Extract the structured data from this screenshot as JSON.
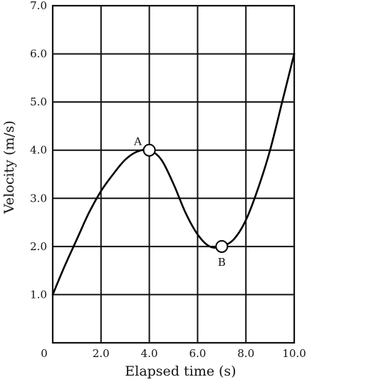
{
  "chart_data": {
    "type": "line",
    "xlabel": "Elapsed time (s)",
    "ylabel": "Velocity (m/s)",
    "xlim": [
      0,
      10
    ],
    "ylim": [
      0,
      7
    ],
    "x_ticks": [
      "0",
      "2.0",
      "4.0",
      "6.0",
      "8.0",
      "10.0"
    ],
    "x_tick_values": [
      0,
      2,
      4,
      6,
      8,
      10
    ],
    "y_ticks": [
      "0",
      "1.0",
      "2.0",
      "3.0",
      "4.0",
      "5.0",
      "6.0",
      "7.0"
    ],
    "y_tick_values": [
      0,
      1,
      2,
      3,
      4,
      5,
      6,
      7
    ],
    "grid": true,
    "series": [
      {
        "x": [
          0,
          0.5,
          1.0,
          1.5,
          2.0,
          2.5,
          3.0,
          3.5,
          4.0,
          4.5,
          5.0,
          5.5,
          6.0,
          6.5,
          7.0,
          7.5,
          8.0,
          8.5,
          9.0,
          9.5,
          10.0
        ],
        "y": [
          1.0,
          1.6,
          2.15,
          2.7,
          3.15,
          3.5,
          3.8,
          3.97,
          4.0,
          3.8,
          3.3,
          2.7,
          2.25,
          2.0,
          2.0,
          2.15,
          2.55,
          3.2,
          4.0,
          5.0,
          6.0
        ]
      }
    ],
    "points": [
      {
        "label": "A",
        "x": 4.0,
        "y": 4.0
      },
      {
        "label": "B",
        "x": 7.0,
        "y": 2.0
      }
    ]
  }
}
